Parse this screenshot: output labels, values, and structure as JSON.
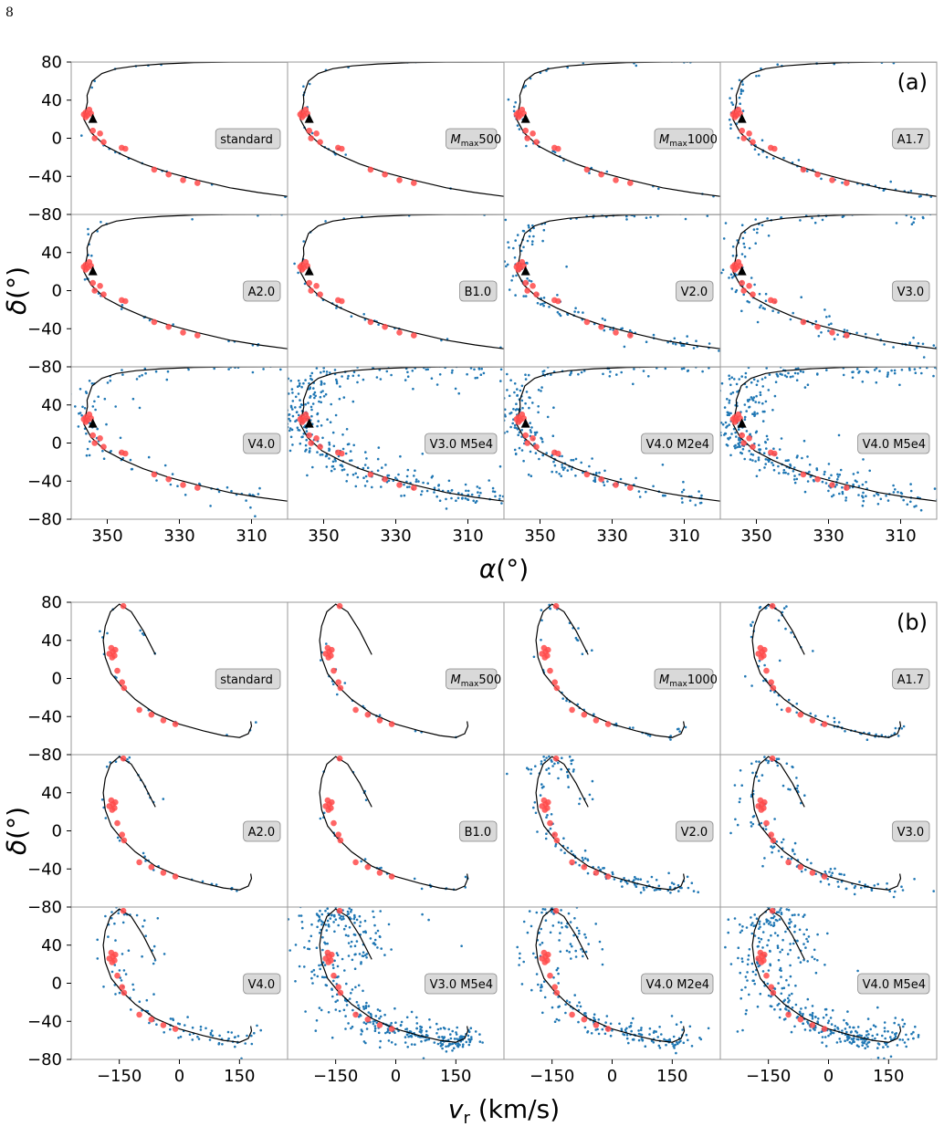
{
  "page": {
    "number": "8",
    "caption_fragment": "(a)                                                                   (b)"
  },
  "colors": {
    "stars": "#1f77b4",
    "observed": "#ff4a4a",
    "curve": "#000000",
    "frame": "#9a9a9a",
    "label_box": "#d9d9d9"
  },
  "chart_data": [
    {
      "type": "scatter",
      "panel": "(a)",
      "xlabel": "α(°)",
      "ylabel": "δ(°)",
      "xlim": [
        360,
        300
      ],
      "ylim": [
        -80,
        80
      ],
      "xticks": [
        "350",
        "330",
        "310"
      ],
      "yticks": [
        "80",
        "40",
        "0",
        "−40",
        "−80"
      ],
      "grid": false,
      "subplot_labels": [
        "standard",
        "Mmax500",
        "Mmax1000",
        "A1.7",
        "A2.0",
        "B1.0",
        "V2.0",
        "V3.0",
        "V4.0",
        "V3.0 M5e4",
        "V4.0 M2e4",
        "V4.0 M5e4"
      ],
      "observed_points": [
        {
          "x": 356.0,
          "y": 27
        },
        {
          "x": 355.5,
          "y": 24
        },
        {
          "x": 356.5,
          "y": 25
        },
        {
          "x": 355.0,
          "y": 30
        },
        {
          "x": 354.5,
          "y": 26
        },
        {
          "x": 356.0,
          "y": 22
        },
        {
          "x": 354.0,
          "y": 8
        },
        {
          "x": 352.0,
          "y": 5
        },
        {
          "x": 353.5,
          "y": 0
        },
        {
          "x": 351.0,
          "y": -4
        },
        {
          "x": 346.0,
          "y": -10
        },
        {
          "x": 345.0,
          "y": -11
        },
        {
          "x": 337.0,
          "y": -33
        },
        {
          "x": 333.0,
          "y": -38
        },
        {
          "x": 329.0,
          "y": -44
        },
        {
          "x": 325.0,
          "y": -47
        }
      ],
      "progenitor": {
        "x": 354.0,
        "y": 20
      },
      "orbit_curve": [
        [
          355.6,
          45
        ],
        [
          354.2,
          60
        ],
        [
          351.5,
          68
        ],
        [
          347.5,
          73
        ],
        [
          342.0,
          76
        ],
        [
          335.0,
          78
        ],
        [
          326.0,
          79.3
        ],
        [
          316.0,
          79.8
        ],
        [
          300.0,
          80.0
        ],
        [
          355.5,
          38
        ],
        [
          356.5,
          20
        ],
        [
          354.5,
          6
        ],
        [
          350.5,
          -8
        ],
        [
          345.5,
          -18
        ],
        [
          340.0,
          -27
        ],
        [
          333.0,
          -36
        ],
        [
          325.0,
          -44
        ],
        [
          316.0,
          -52
        ],
        [
          308.0,
          -57
        ],
        [
          300.0,
          -61
        ]
      ]
    },
    {
      "type": "scatter",
      "panel": "(b)",
      "xlabel": "v_r (km/s)",
      "ylabel": "δ(°)",
      "xlim": [
        -270,
        270
      ],
      "ylim": [
        -80,
        80
      ],
      "xticks": [
        "−150",
        "0",
        "150"
      ],
      "yticks": [
        "80",
        "40",
        "0",
        "−40",
        "−80"
      ],
      "grid": false,
      "subplot_labels": [
        "standard",
        "Mmax500",
        "Mmax1000",
        "A1.7",
        "A2.0",
        "B1.0",
        "V2.0",
        "V3.0",
        "V4.0",
        "V3.0 M5e4",
        "V4.0 M2e4",
        "V4.0 M5e4"
      ],
      "observed_points": [
        {
          "x": -170,
          "y": 32
        },
        {
          "x": -166,
          "y": 28
        },
        {
          "x": -162,
          "y": 24
        },
        {
          "x": -175,
          "y": 26
        },
        {
          "x": -168,
          "y": 22
        },
        {
          "x": -160,
          "y": 30
        },
        {
          "x": -155,
          "y": 8
        },
        {
          "x": -143,
          "y": -4
        },
        {
          "x": -138,
          "y": -10
        },
        {
          "x": -100,
          "y": -33
        },
        {
          "x": -70,
          "y": -38
        },
        {
          "x": -40,
          "y": -44
        },
        {
          "x": -10,
          "y": -48
        },
        {
          "x": -140,
          "y": 76
        }
      ],
      "orbit_curve": [
        [
          -60,
          25
        ],
        [
          -90,
          50
        ],
        [
          -120,
          70
        ],
        [
          -150,
          78
        ],
        [
          -172,
          70
        ],
        [
          -185,
          55
        ],
        [
          -190,
          40
        ],
        [
          -185,
          22
        ],
        [
          -170,
          5
        ],
        [
          -145,
          -8
        ],
        [
          -110,
          -22
        ],
        [
          -60,
          -37
        ],
        [
          0,
          -48
        ],
        [
          60,
          -55
        ],
        [
          110,
          -60
        ],
        [
          150,
          -62
        ],
        [
          172,
          -58
        ],
        [
          180,
          -50
        ],
        [
          178,
          -45
        ]
      ]
    }
  ]
}
